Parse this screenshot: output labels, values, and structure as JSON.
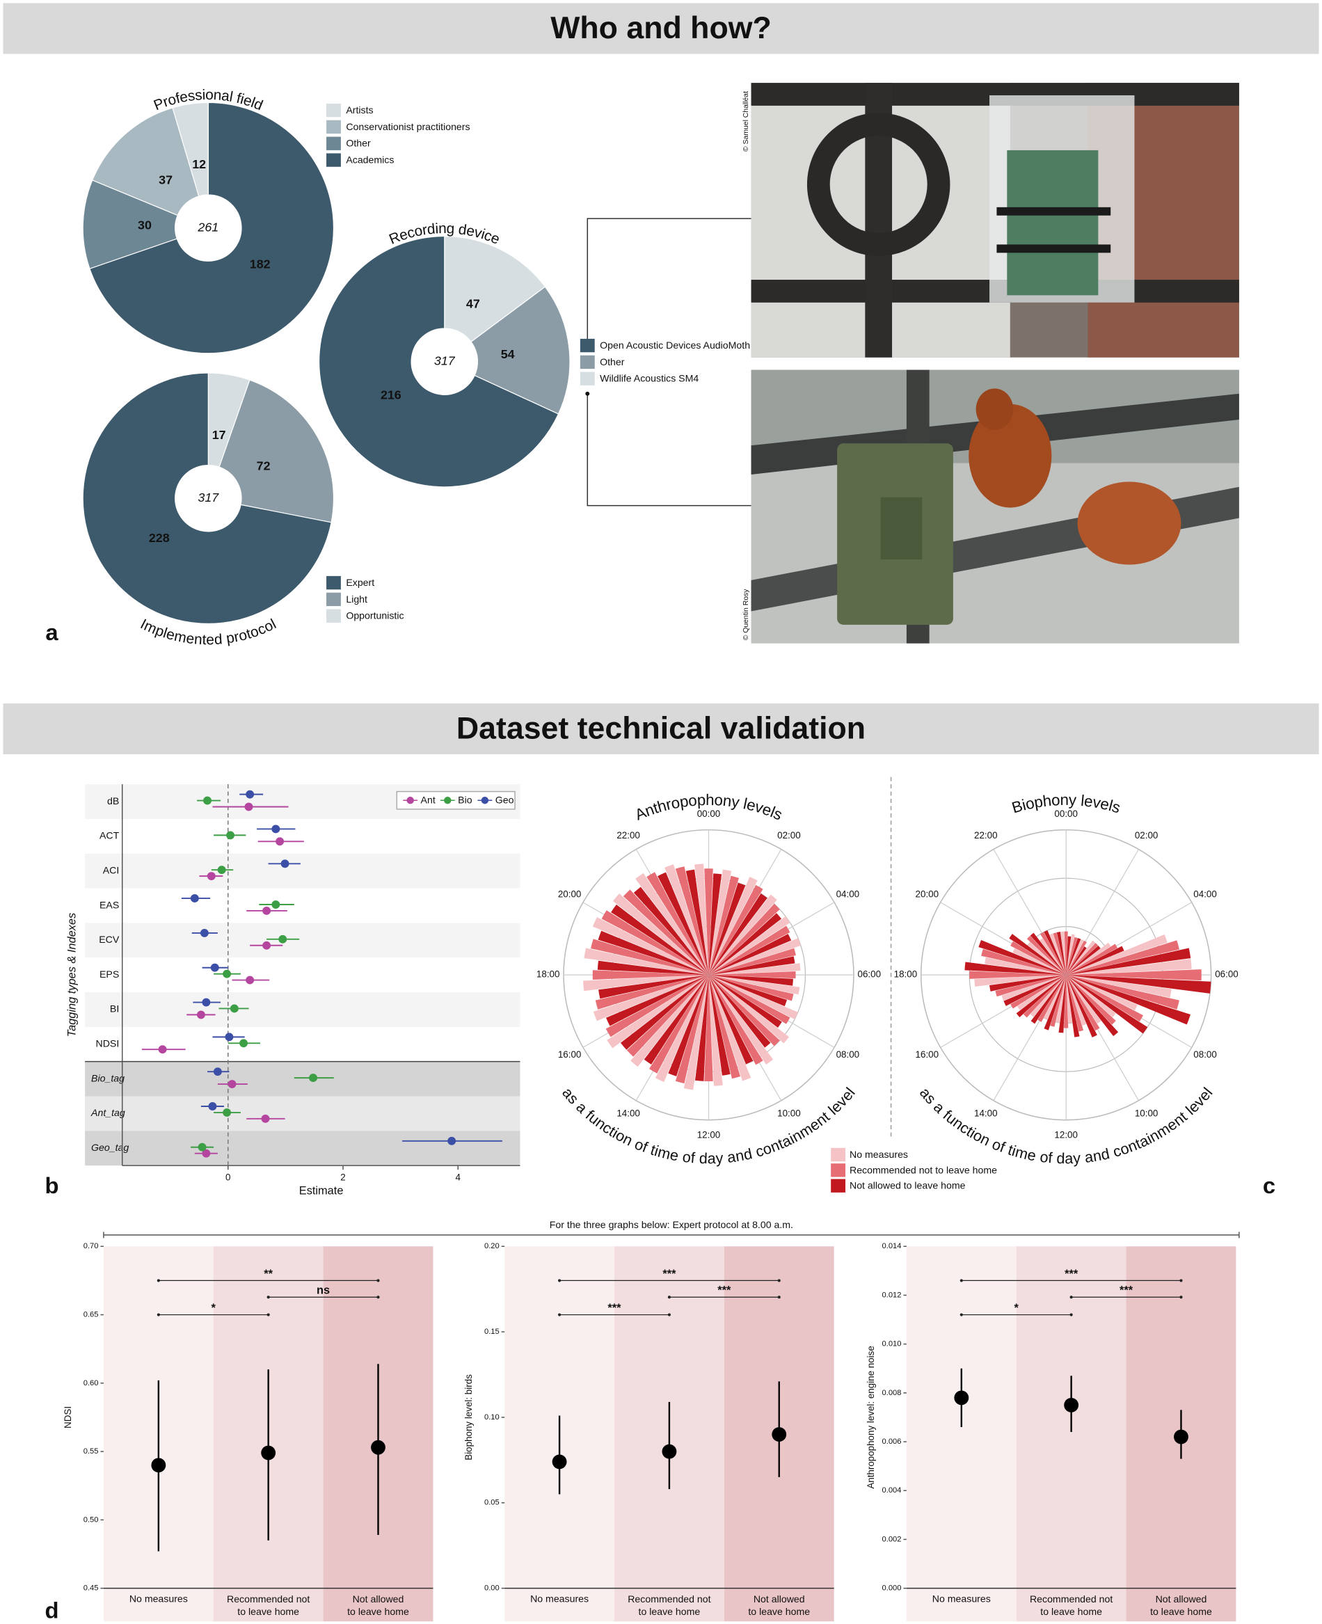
{
  "sections": [
    "Who and how?",
    "Dataset technical validation"
  ],
  "panel_labels": [
    "a",
    "b",
    "c",
    "d"
  ],
  "images": [
    {
      "credit": "© Samuel Challéat"
    },
    {
      "credit": "© Quentin Rosy"
    }
  ],
  "chart_data": [
    {
      "type": "donut",
      "title": "Professional field",
      "total": 261,
      "categories": [
        "Artists",
        "Conservationist practitioners",
        "Other",
        "Academics"
      ],
      "values": [
        12,
        37,
        30,
        182
      ],
      "colors": [
        "#d6dee2",
        "#a9b9c1",
        "#6e8795",
        "#3d5a6c"
      ]
    },
    {
      "type": "donut",
      "title": "Recording device",
      "total": 317,
      "categories": [
        "Open Acoustic Devices AudioMoth",
        "Other",
        "Wildlife Acoustics SM4"
      ],
      "values": [
        216,
        54,
        47
      ],
      "colors": [
        "#3d5a6c",
        "#8b9ca7",
        "#d6dee2"
      ]
    },
    {
      "type": "donut",
      "title": "Implemented protocol",
      "total": 317,
      "categories": [
        "Expert",
        "Light",
        "Opportunistic"
      ],
      "values": [
        228,
        72,
        17
      ],
      "colors": [
        "#3d5a6c",
        "#8b9ca7",
        "#d6dee2"
      ]
    },
    {
      "type": "forest",
      "ylabel": "Tagging types & Indexes",
      "xlabel": "Estimate",
      "categories": [
        "dB",
        "ACT",
        "ACI",
        "EAS",
        "ECV",
        "EPS",
        "BI",
        "NDSI",
        "Bio_tag",
        "Ant_tag",
        "Geo_tag"
      ],
      "xlim": [
        -1.84,
        5.08
      ],
      "xticks": [
        0,
        2,
        4
      ],
      "series": [
        {
          "name": "Ant",
          "color": "#b5469f",
          "values": [
            0.36,
            0.9,
            -0.29,
            0.67,
            0.67,
            0.38,
            -0.47,
            -1.14,
            0.07,
            0.65,
            -0.38
          ],
          "lower": [
            -0.27,
            0.52,
            -0.5,
            0.32,
            0.38,
            0.07,
            -0.72,
            -1.5,
            -0.18,
            0.32,
            -0.58
          ],
          "upper": [
            1.05,
            1.32,
            -0.09,
            1.03,
            0.95,
            0.72,
            -0.22,
            -0.74,
            0.34,
            0.99,
            -0.18
          ]
        },
        {
          "name": "Bio",
          "color": "#3c9e45",
          "values": [
            -0.36,
            0.04,
            -0.11,
            0.83,
            0.95,
            -0.02,
            0.11,
            0.27,
            1.48,
            -0.02,
            -0.45
          ],
          "lower": [
            -0.54,
            -0.25,
            -0.29,
            0.54,
            0.67,
            -0.25,
            -0.16,
            0,
            1.15,
            -0.25,
            -0.65
          ],
          "upper": [
            -0.13,
            0.31,
            0.09,
            1.15,
            1.24,
            0.22,
            0.36,
            0.56,
            1.84,
            0.22,
            -0.25
          ]
        },
        {
          "name": "Geo",
          "color": "#3c4fa6",
          "values": [
            0.38,
            0.83,
            0.99,
            -0.58,
            -0.41,
            -0.23,
            -0.38,
            0.02,
            -0.18,
            -0.27,
            3.89
          ],
          "lower": [
            0.2,
            0.5,
            0.7,
            -0.81,
            -0.63,
            -0.45,
            -0.61,
            -0.27,
            -0.36,
            -0.47,
            3.03
          ],
          "upper": [
            0.61,
            1.17,
            1.26,
            -0.31,
            -0.18,
            0,
            -0.13,
            0.29,
            0.02,
            -0.07,
            4.77
          ]
        }
      ]
    },
    {
      "type": "polar",
      "subtitle": "as a function of time of day and containment level",
      "categories": [
        "00:00",
        null,
        "02:00",
        null,
        "04:00",
        null,
        "06:00",
        null,
        "08:00",
        null,
        "10:00",
        null,
        "12:00",
        null,
        "14:00",
        null,
        "16:00",
        null,
        "18:00",
        null,
        "20:00",
        null,
        "22:00",
        null
      ],
      "rlim": [
        0,
        3
      ],
      "rticks": [
        1,
        2,
        3
      ],
      "series": [
        {
          "name": "No measures",
          "color": "#f5c3c6"
        },
        {
          "name": "Recommended not to leave home",
          "color": "#e66d73"
        },
        {
          "name": "Not allowed to leave home",
          "color": "#c1191f"
        }
      ],
      "panels": [
        {
          "title": "Anthropophony levels",
          "values": [
            [
              2.3,
              2.2,
              2.2,
              2.1,
              2.0,
              2.0,
              1.9,
              1.9,
              2.0,
              2.1,
              2.2,
              2.3,
              2.3,
              2.4,
              2.4,
              2.4,
              2.5,
              2.5,
              2.6,
              2.6,
              2.6,
              2.5,
              2.5,
              2.4
            ],
            [
              2.2,
              2.1,
              2.1,
              2.0,
              1.9,
              1.85,
              1.8,
              1.8,
              1.9,
              2.0,
              2.1,
              2.2,
              2.2,
              2.3,
              2.3,
              2.3,
              2.4,
              2.4,
              2.4,
              2.5,
              2.5,
              2.4,
              2.4,
              2.3
            ],
            [
              2.1,
              2.0,
              2.0,
              1.9,
              1.85,
              1.8,
              1.75,
              1.7,
              1.8,
              1.9,
              2.0,
              2.1,
              2.2,
              2.2,
              2.2,
              2.3,
              2.3,
              2.3,
              2.3,
              2.4,
              2.4,
              2.3,
              2.3,
              2.2
            ]
          ]
        },
        {
          "title": "Biophony levels",
          "values": [
            [
              0.9,
              0.85,
              0.8,
              0.9,
              1.1,
              2.2,
              2.6,
              2.2,
              1.6,
              1.3,
              1.2,
              1.1,
              1.0,
              1.0,
              1.0,
              1.1,
              1.2,
              1.4,
              1.9,
              1.7,
              1.2,
              1.0,
              0.9,
              0.9
            ],
            [
              0.9,
              0.8,
              0.8,
              0.9,
              1.2,
              2.4,
              2.8,
              2.4,
              1.8,
              1.4,
              1.3,
              1.2,
              1.1,
              1.1,
              1.1,
              1.2,
              1.3,
              1.5,
              2.0,
              1.8,
              1.3,
              1.1,
              1.0,
              0.9
            ],
            [
              0.8,
              0.8,
              0.7,
              0.9,
              1.3,
              2.6,
              3.0,
              2.7,
              2.0,
              1.6,
              1.4,
              1.3,
              1.2,
              1.2,
              1.2,
              1.3,
              1.4,
              1.6,
              2.1,
              1.9,
              1.4,
              1.1,
              1.0,
              0.9
            ]
          ]
        }
      ]
    },
    {
      "type": "pointrange",
      "note": "For the three graphs below: Expert protocol at 8.00 a.m.",
      "categories": [
        "No measures",
        "Recommended not\nto leave home",
        "Not allowed\nto leave home"
      ],
      "band_colors": [
        "#f8efee",
        "#f3dedf",
        "#e9c5c8"
      ],
      "panels": [
        {
          "ylabel": "NDSI",
          "ylim": [
            0.45,
            0.7
          ],
          "yticks": [
            0.45,
            {
              "value": 0.5,
              "label": "0.50"
            },
            0.55,
            {
              "value": 0.6,
              "label": "0.60"
            },
            0.65,
            {
              "value": 0.7,
              "label": "0.70"
            }
          ],
          "values": [
            0.54,
            0.549,
            0.553
          ],
          "lower": [
            0.477,
            0.485,
            0.489
          ],
          "upper": [
            0.602,
            0.61,
            0.614
          ],
          "comparisons": [
            {
              "between": [
                0,
                2
              ],
              "label": "**"
            },
            {
              "between": [
                1,
                2
              ],
              "label": "ns"
            },
            {
              "between": [
                0,
                1
              ],
              "label": "*"
            }
          ]
        },
        {
          "ylabel": "Biophony level: birds",
          "ylim": [
            0,
            0.2
          ],
          "yticks": [
            {
              "value": 0,
              "label": "0.00"
            },
            0.05,
            {
              "value": 0.1,
              "label": "0.10"
            },
            0.15,
            {
              "value": 0.2,
              "label": "0.20"
            }
          ],
          "values": [
            0.074,
            0.08,
            0.09
          ],
          "lower": [
            0.055,
            0.058,
            0.065
          ],
          "upper": [
            0.101,
            0.109,
            0.121
          ],
          "comparisons": [
            {
              "between": [
                0,
                2
              ],
              "label": "***"
            },
            {
              "between": [
                1,
                2
              ],
              "label": "***"
            },
            {
              "between": [
                0,
                1
              ],
              "label": "***"
            }
          ]
        },
        {
          "ylabel": "Anthropophony level: engine noise",
          "ylim": [
            0,
            0.014
          ],
          "yticks": [
            {
              "value": 0,
              "label": "0.000"
            },
            0.002,
            0.004,
            0.006,
            0.008,
            {
              "value": 0.01,
              "label": "0.010"
            },
            0.012,
            0.014
          ],
          "values": [
            0.0078,
            0.0075,
            0.0062
          ],
          "lower": [
            0.0066,
            0.0064,
            0.0053
          ],
          "upper": [
            0.009,
            0.0087,
            0.0073
          ],
          "comparisons": [
            {
              "between": [
                0,
                2
              ],
              "label": "***"
            },
            {
              "between": [
                1,
                2
              ],
              "label": "***"
            },
            {
              "between": [
                0,
                1
              ],
              "label": "*"
            }
          ]
        }
      ]
    }
  ]
}
